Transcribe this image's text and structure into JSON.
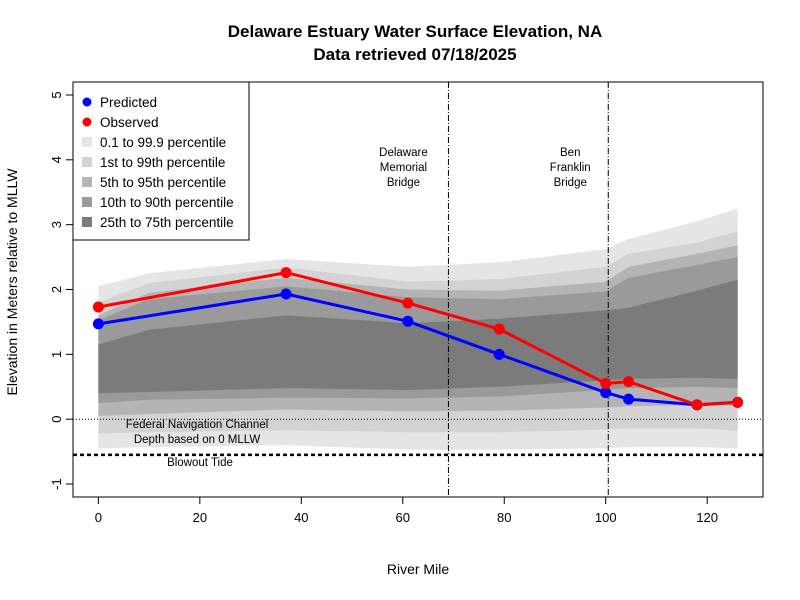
{
  "chart_data": {
    "type": "line",
    "title": "Delaware Estuary Water Surface Elevation,  NA",
    "subtitle": "Data retrieved  07/18/2025",
    "xlabel": "River Mile",
    "ylabel": "Elevation in Meters relative to MLLW",
    "xlim": [
      -5,
      131
    ],
    "ylim": [
      -1.2,
      5.2
    ],
    "x_ticks": [
      0,
      20,
      40,
      60,
      80,
      100,
      120
    ],
    "y_ticks": [
      -1,
      0,
      1,
      2,
      3,
      4,
      5
    ],
    "series": [
      {
        "name": "Predicted",
        "color": "#0000ff",
        "x": [
          0,
          37,
          61,
          79,
          100,
          104.5,
          118,
          126
        ],
        "y": [
          1.47,
          1.93,
          1.51,
          1.0,
          0.41,
          0.31,
          0.22,
          0.26
        ]
      },
      {
        "name": "Observed",
        "color": "#ff0000",
        "x": [
          0,
          37,
          61,
          79,
          100,
          104.5,
          118,
          126
        ],
        "y": [
          1.73,
          2.26,
          1.79,
          1.39,
          0.55,
          0.58,
          0.22,
          0.26
        ]
      }
    ],
    "bands": {
      "x": [
        0,
        10,
        37,
        61,
        79,
        100,
        104.5,
        118,
        126
      ],
      "items": [
        {
          "label": "0.1 to 99.9 percentile",
          "color": "#e5e5e5",
          "lower": [
            -0.45,
            -0.43,
            -0.4,
            -0.47,
            -0.47,
            -0.45,
            -0.43,
            -0.43,
            -0.45
          ],
          "upper": [
            2.05,
            2.25,
            2.47,
            2.35,
            2.42,
            2.62,
            2.78,
            3.05,
            3.25
          ]
        },
        {
          "label": "1st to 99th percentile",
          "color": "#d3d3d3",
          "lower": [
            -0.22,
            -0.2,
            -0.17,
            -0.2,
            -0.2,
            -0.16,
            -0.14,
            -0.14,
            -0.18
          ],
          "upper": [
            1.8,
            2.1,
            2.34,
            2.12,
            2.16,
            2.35,
            2.55,
            2.72,
            2.9
          ]
        },
        {
          "label": "5th to 95th percentile",
          "color": "#b4b4b4",
          "lower": [
            0.05,
            0.08,
            0.15,
            0.12,
            0.13,
            0.18,
            0.2,
            0.22,
            0.2
          ],
          "upper": [
            1.6,
            1.95,
            2.18,
            2.0,
            1.98,
            2.12,
            2.35,
            2.55,
            2.68
          ]
        },
        {
          "label": "10th to 90th percentile",
          "color": "#9a9a9a",
          "lower": [
            0.25,
            0.3,
            0.33,
            0.32,
            0.35,
            0.45,
            0.48,
            0.5,
            0.48
          ],
          "upper": [
            1.53,
            1.85,
            2.05,
            1.88,
            1.85,
            1.97,
            2.18,
            2.38,
            2.5
          ]
        },
        {
          "label": "25th to 75th percentile",
          "color": "#7b7b7b",
          "lower": [
            0.4,
            0.42,
            0.48,
            0.45,
            0.5,
            0.6,
            0.62,
            0.64,
            0.62
          ],
          "upper": [
            1.15,
            1.38,
            1.6,
            1.48,
            1.55,
            1.68,
            1.72,
            1.98,
            2.15
          ]
        }
      ]
    },
    "reference_lines": {
      "mllw_zero": {
        "y": 0,
        "style": "dotted"
      },
      "blowout_tide": {
        "y": -0.55,
        "style": "dashed",
        "label": "Blowout Tide"
      },
      "bridges": [
        {
          "x": 69,
          "label_lines": [
            "Delaware",
            "Memorial",
            "Bridge"
          ]
        },
        {
          "x": 100.5,
          "label_lines": [
            "Ben",
            "Franklin",
            "Bridge"
          ]
        }
      ]
    },
    "annotations": {
      "channel_lines": [
        "Federal Navigation Channel",
        "Depth based on 0 MLLW"
      ]
    },
    "legend": {
      "position": "top-left",
      "entries": [
        {
          "label": "Predicted",
          "color": "#0000ff",
          "kind": "point"
        },
        {
          "label": "Observed",
          "color": "#ff0000",
          "kind": "point"
        },
        {
          "label": "0.1 to 99.9 percentile",
          "color": "#e5e5e5",
          "kind": "square"
        },
        {
          "label": "1st to 99th percentile",
          "color": "#d3d3d3",
          "kind": "square"
        },
        {
          "label": "5th to 95th percentile",
          "color": "#b4b4b4",
          "kind": "square"
        },
        {
          "label": "10th to 90th percentile",
          "color": "#9a9a9a",
          "kind": "square"
        },
        {
          "label": "25th to 75th percentile",
          "color": "#7b7b7b",
          "kind": "square"
        }
      ]
    }
  }
}
